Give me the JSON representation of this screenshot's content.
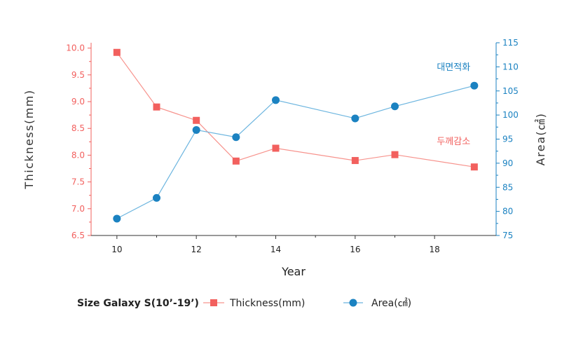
{
  "chart_data": {
    "type": "line",
    "xlabel": "Year",
    "ylabel_left": "Thickness(mm)",
    "ylabel_right": "Area(㎠)",
    "xlim": [
      9.35,
      19.55
    ],
    "ylim_left": [
      6.5,
      10.1
    ],
    "ylim_right": [
      75,
      115
    ],
    "x_ticks": [
      10,
      12,
      14,
      16,
      18
    ],
    "y_ticks_left": [
      6.5,
      7.0,
      7.5,
      8.0,
      8.5,
      9.0,
      9.5,
      10.0
    ],
    "y_ticks_right": [
      75,
      80,
      85,
      90,
      95,
      100,
      105,
      110,
      115
    ],
    "series": [
      {
        "name": "Thickness(mm)",
        "axis": "left",
        "marker": "square",
        "x": [
          10,
          11,
          12,
          13,
          14,
          16,
          17,
          19
        ],
        "y": [
          9.92,
          8.9,
          8.65,
          7.89,
          8.13,
          7.9,
          8.01,
          7.78
        ]
      },
      {
        "name": "Area(㎠)",
        "axis": "right",
        "marker": "circle",
        "x": [
          10,
          11,
          12,
          13,
          14,
          16,
          17,
          19
        ],
        "y": [
          78.5,
          82.8,
          96.9,
          95.4,
          103.1,
          99.3,
          101.8,
          106.1
        ]
      }
    ],
    "annotations": [
      {
        "text": "대면적화",
        "x": 18.9,
        "y_right": 109.3,
        "color_key": "area"
      },
      {
        "text": "두께감소",
        "x": 18.9,
        "y_left": 8.2,
        "color_key": "thickness"
      }
    ],
    "legend": {
      "title": "Size Galaxy S(10’-19’)",
      "placement": "bottom",
      "items": [
        "Thickness(mm)",
        "Area(㎠)"
      ]
    },
    "colors": {
      "thickness": "#f2605e",
      "thickness_line": "#f7938d",
      "area": "#1b82c1",
      "area_line": "#6cb5df"
    },
    "grid": false
  }
}
